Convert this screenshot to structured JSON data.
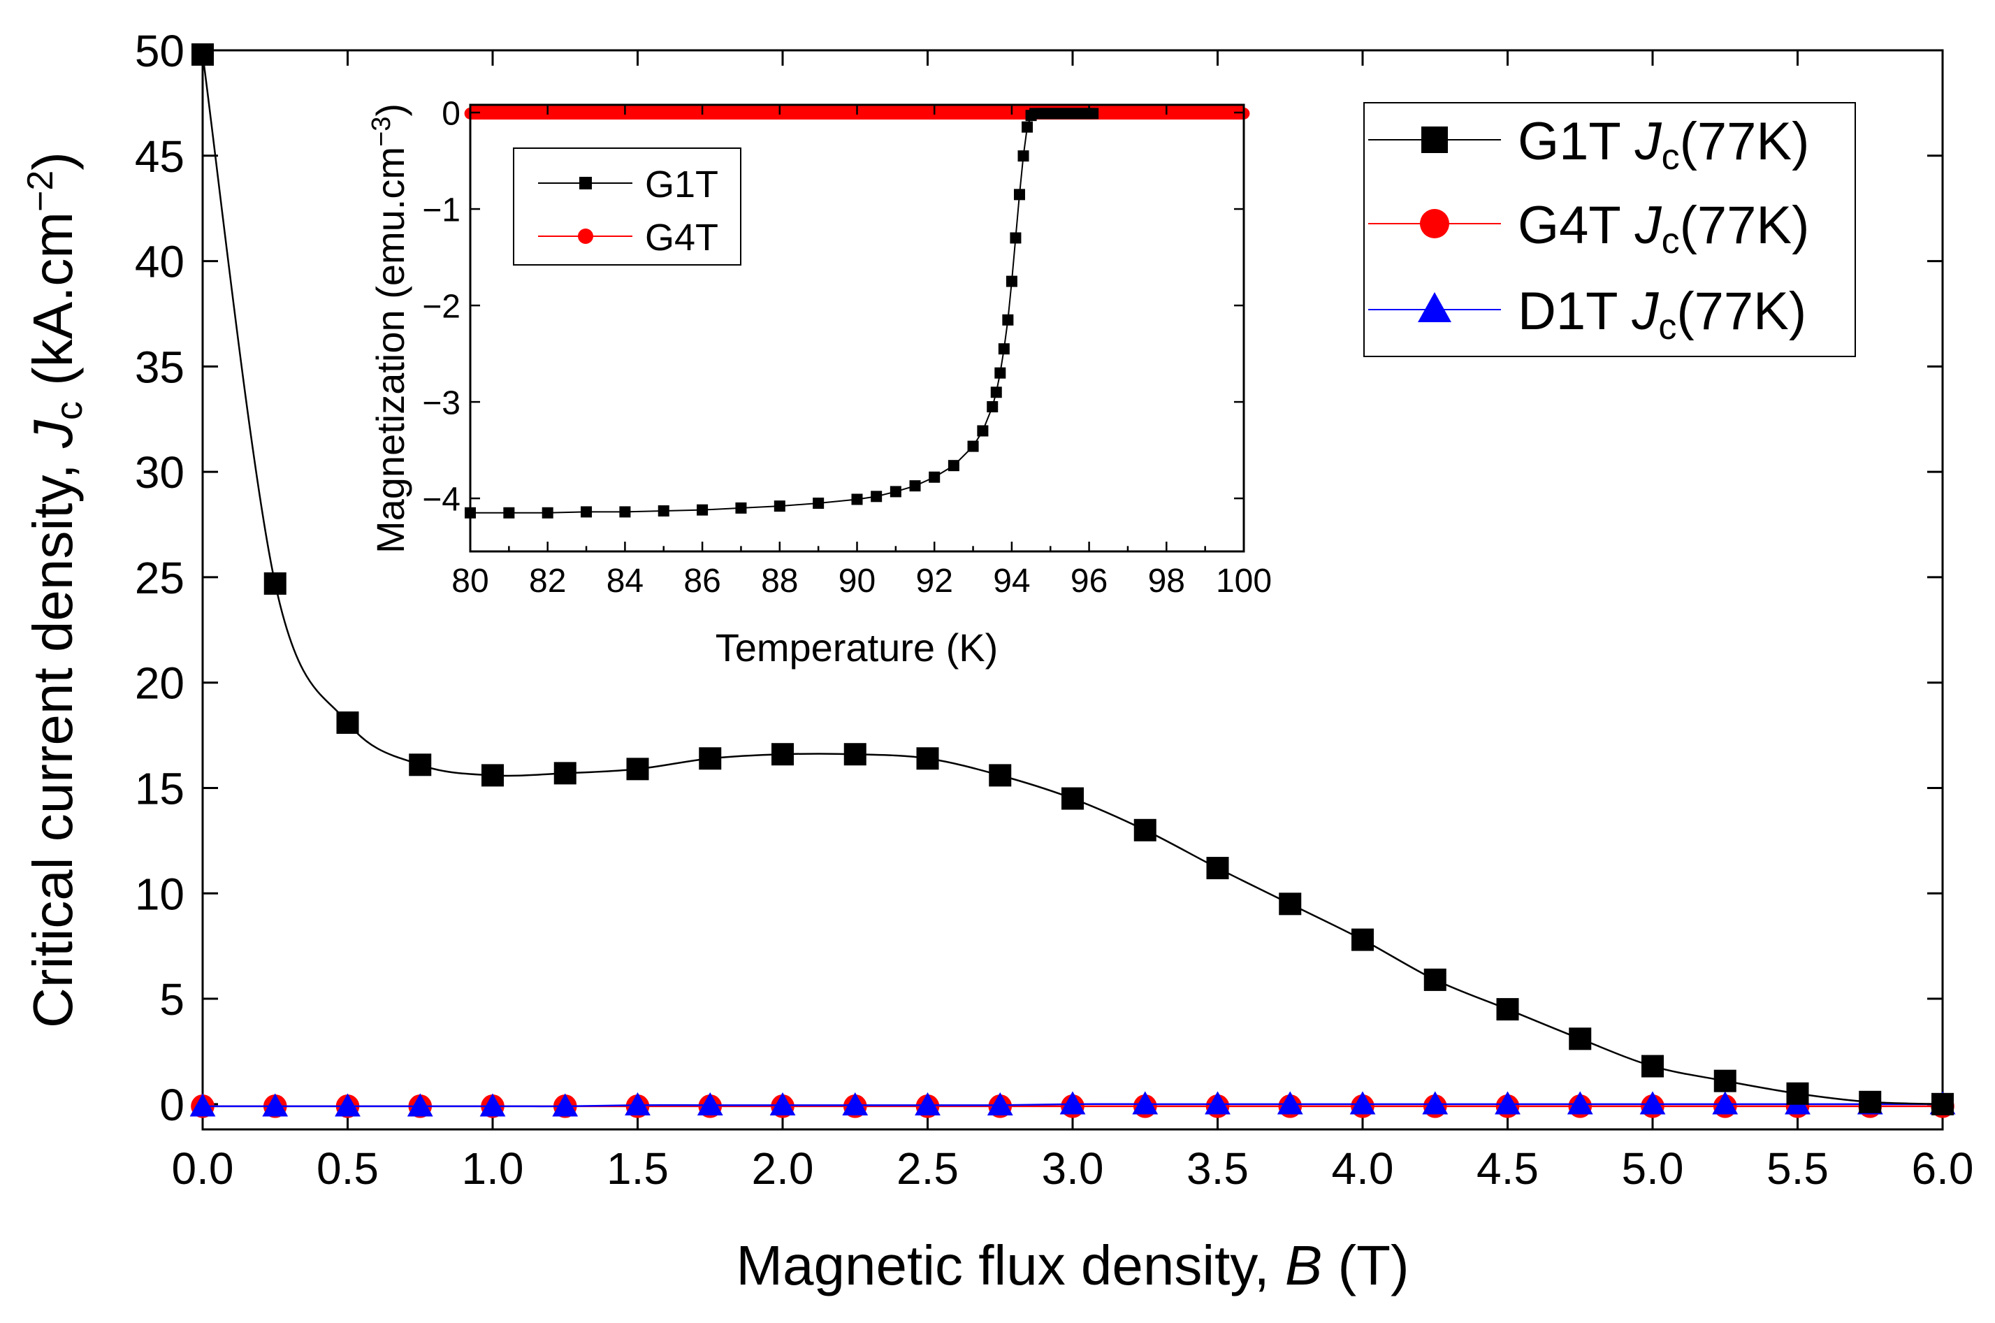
{
  "colors": {
    "g1t": "#000000",
    "g4t": "#ff0000",
    "d1t": "#0000ff",
    "axis": "#000000",
    "background": "#ffffff"
  },
  "chart_data": [
    {
      "id": "main",
      "type": "line",
      "xlabel": {
        "prefix": "Magnetic flux density, ",
        "italic": "B",
        "suffix": " (T)"
      },
      "ylabel": {
        "prefix": "Critical current density, ",
        "italic": "J",
        "sub": "c",
        "suffix": " (kA.cm",
        "sup": "−2",
        "close": ")"
      },
      "xlim": [
        0,
        6
      ],
      "ylim": [
        -1.2,
        50
      ],
      "xticks": [
        0,
        0.5,
        1,
        1.5,
        2,
        2.5,
        3,
        3.5,
        4,
        4.5,
        5,
        5.5,
        6
      ],
      "xtick_labels": [
        "0.0",
        "0.5",
        "1.0",
        "1.5",
        "2.0",
        "2.5",
        "3.0",
        "3.5",
        "4.0",
        "4.5",
        "5.0",
        "5.5",
        "6.0"
      ],
      "yticks": [
        0,
        5,
        10,
        15,
        20,
        25,
        30,
        35,
        40,
        45,
        50
      ],
      "ytick_labels": [
        "0",
        "5",
        "10",
        "15",
        "20",
        "25",
        "30",
        "35",
        "40",
        "45",
        "50"
      ],
      "grid": false,
      "legend_position": "top-right",
      "series": [
        {
          "name": "G1T",
          "label_text": "G1T ",
          "label_italic": "J",
          "label_sub": "c",
          "label_suffix": "(77K)",
          "marker": "square",
          "color": "#000000",
          "x": [
            0,
            0.25,
            0.5,
            0.75,
            1.0,
            1.25,
            1.5,
            1.75,
            2.0,
            2.25,
            2.5,
            2.75,
            3.0,
            3.25,
            3.5,
            3.75,
            4.0,
            4.25,
            4.5,
            4.75,
            5.0,
            5.25,
            5.5,
            5.75,
            6.0
          ],
          "y": [
            49.8,
            24.7,
            18.1,
            16.1,
            15.6,
            15.7,
            15.9,
            16.4,
            16.6,
            16.6,
            16.4,
            15.6,
            14.5,
            13.0,
            11.2,
            9.5,
            7.8,
            5.9,
            4.5,
            3.1,
            1.8,
            1.1,
            0.5,
            0.1,
            0.0
          ]
        },
        {
          "name": "G4T",
          "label_text": "G4T ",
          "label_italic": "J",
          "label_sub": "c",
          "label_suffix": "(77K)",
          "marker": "circle",
          "color": "#ff0000",
          "x": [
            0,
            0.25,
            0.5,
            0.75,
            1.0,
            1.25,
            1.5,
            1.75,
            2.0,
            2.25,
            2.5,
            2.75,
            3.0,
            3.25,
            3.5,
            3.75,
            4.0,
            4.25,
            4.5,
            4.75,
            5.0,
            5.25,
            5.5,
            5.75,
            6.0
          ],
          "y": [
            -0.1,
            -0.1,
            -0.1,
            -0.1,
            -0.1,
            -0.1,
            -0.1,
            -0.1,
            -0.1,
            -0.1,
            -0.1,
            -0.1,
            -0.1,
            -0.1,
            -0.1,
            -0.1,
            -0.1,
            -0.1,
            -0.1,
            -0.1,
            -0.1,
            -0.1,
            -0.1,
            -0.1,
            -0.1
          ]
        },
        {
          "name": "D1T",
          "label_text": "D1T ",
          "label_italic": "J",
          "label_sub": "c",
          "label_suffix": "(77K)",
          "marker": "triangle",
          "color": "#0000ff",
          "x": [
            0,
            0.25,
            0.5,
            0.75,
            1.0,
            1.25,
            1.5,
            1.75,
            2.0,
            2.25,
            2.5,
            2.75,
            3.0,
            3.25,
            3.5,
            3.75,
            4.0,
            4.25,
            4.5,
            4.75,
            5.0,
            5.25,
            5.5,
            5.75,
            6.0
          ],
          "y": [
            -0.1,
            -0.1,
            -0.1,
            -0.1,
            -0.1,
            -0.1,
            -0.05,
            -0.05,
            -0.05,
            -0.05,
            -0.05,
            -0.05,
            0,
            0,
            0,
            0,
            0,
            0,
            0,
            0,
            0,
            0,
            0,
            0,
            0
          ]
        }
      ]
    },
    {
      "id": "inset",
      "type": "scatter",
      "xlabel": {
        "prefix": "Temperature (K)"
      },
      "ylabel": {
        "prefix": "Magnetization (emu.cm",
        "sup": "−3",
        "close": ")"
      },
      "xlim": [
        80,
        100
      ],
      "ylim": [
        -4.55,
        0.08
      ],
      "xticks": [
        80,
        82,
        84,
        86,
        88,
        90,
        92,
        94,
        96,
        98,
        100
      ],
      "xtick_labels": [
        "80",
        "82",
        "84",
        "86",
        "88",
        "90",
        "92",
        "94",
        "96",
        "98",
        "100"
      ],
      "yticks": [
        0,
        -1,
        -2,
        -3,
        -4
      ],
      "ytick_labels": [
        "0",
        "−1",
        "−2",
        "−3",
        "−4"
      ],
      "grid": false,
      "legend_position": "top-left",
      "series": [
        {
          "name": "G1T",
          "label_text": "G1T",
          "marker": "square",
          "color": "#000000",
          "x": [
            80,
            81,
            82,
            83,
            84,
            85,
            86,
            87,
            88,
            89,
            90,
            90.5,
            91,
            91.5,
            92,
            92.5,
            93,
            93.25,
            93.5,
            93.6,
            93.7,
            93.8,
            93.9,
            94.0,
            94.1,
            94.2,
            94.3,
            94.4,
            94.5,
            94.6,
            94.7,
            94.8,
            94.9,
            95.0,
            95.1,
            95.2,
            95.3,
            95.4,
            95.5,
            95.6,
            95.7,
            95.8,
            95.9,
            96.0,
            96.1
          ],
          "y": [
            -4.15,
            -4.15,
            -4.15,
            -4.14,
            -4.14,
            -4.13,
            -4.12,
            -4.1,
            -4.08,
            -4.05,
            -4.01,
            -3.98,
            -3.93,
            -3.87,
            -3.78,
            -3.66,
            -3.46,
            -3.3,
            -3.05,
            -2.9,
            -2.7,
            -2.45,
            -2.15,
            -1.75,
            -1.3,
            -0.85,
            -0.45,
            -0.15,
            -0.03,
            -0.01,
            -0.01,
            -0.01,
            -0.01,
            -0.01,
            -0.01,
            -0.01,
            -0.01,
            -0.01,
            -0.01,
            -0.01,
            -0.01,
            -0.01,
            -0.01,
            -0.01,
            -0.01
          ]
        },
        {
          "name": "G4T",
          "label_text": "G4T",
          "marker": "circle",
          "color": "#ff0000",
          "x": [
            80,
            81,
            82,
            83,
            84,
            85,
            86,
            87,
            88,
            89,
            90,
            91,
            92,
            93,
            94,
            95,
            96,
            97,
            98,
            99,
            100
          ],
          "y": [
            -0.01,
            -0.01,
            -0.01,
            -0.01,
            -0.01,
            -0.01,
            -0.01,
            -0.01,
            -0.01,
            -0.01,
            -0.01,
            -0.01,
            -0.01,
            -0.01,
            -0.01,
            -0.01,
            -0.01,
            -0.01,
            -0.01,
            -0.01,
            -0.01
          ]
        }
      ]
    }
  ]
}
